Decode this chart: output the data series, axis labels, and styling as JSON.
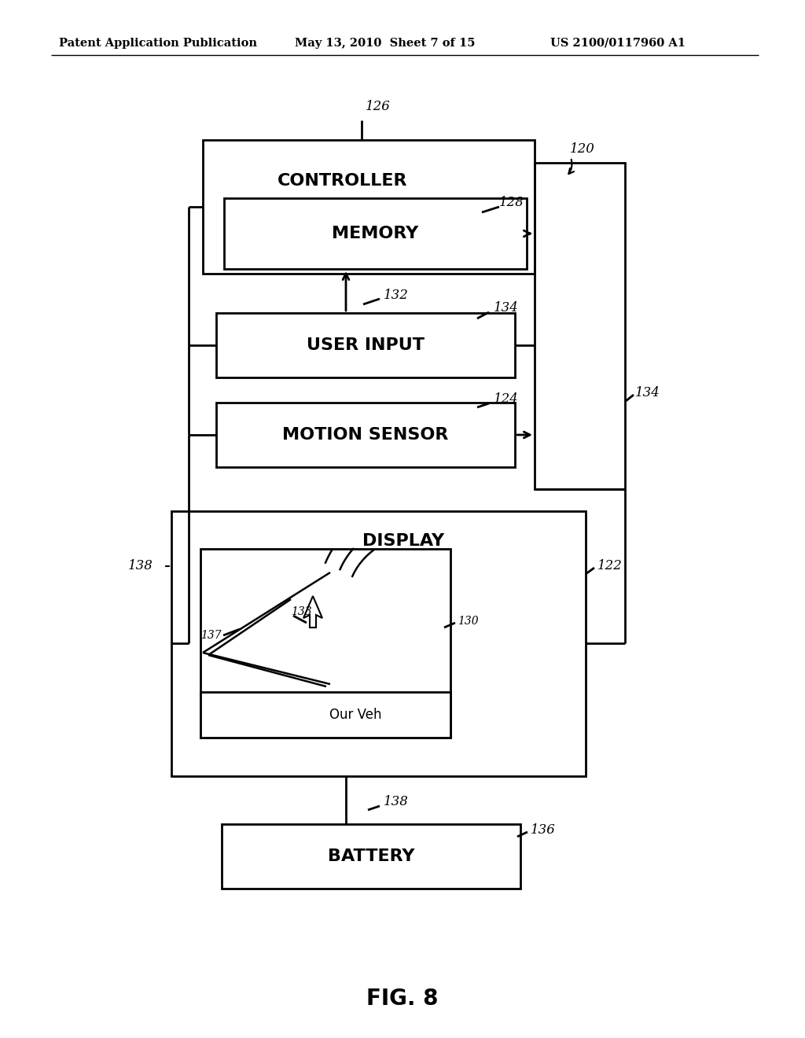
{
  "bg_color": "#ffffff",
  "line_color": "#000000",
  "header_left": "Patent Application Publication",
  "header_mid": "May 13, 2010  Sheet 7 of 15",
  "header_right": "US 2100/0117960 A1",
  "fig_label": "FIG. 8",
  "controller_label": "CONTROLLER",
  "memory_label": "MEMORY",
  "user_input_label": "USER INPUT",
  "motion_sensor_label": "MOTION SENSOR",
  "display_label": "DISPLAY",
  "battery_label": "BATTERY",
  "our_veh_label": "Our Veh",
  "ref_120": "120",
  "ref_122": "122",
  "ref_124": "124",
  "ref_126": "126",
  "ref_128": "128",
  "ref_130": "130",
  "ref_132": "132",
  "ref_133": "133",
  "ref_134": "134",
  "ref_136": "136",
  "ref_137": "137",
  "ref_138": "138"
}
